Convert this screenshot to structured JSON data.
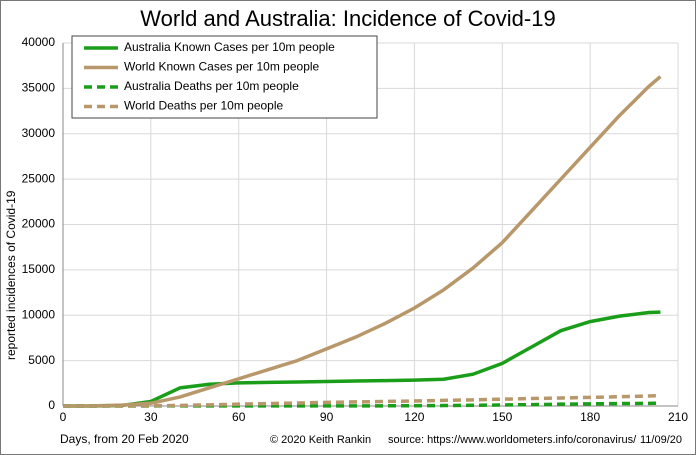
{
  "chart_data": {
    "type": "line",
    "title": "World and Australia: Incidence of Covid-19",
    "x_label": "Days, from 20 Feb 2020",
    "y_label": "reported incidences of Covid-19",
    "annotations": [
      "© 2020  Keith Rankin",
      "source:  https://www.worldometers.info/coronavirus/",
      "11/09/20"
    ],
    "x": [
      0,
      10,
      20,
      30,
      40,
      50,
      60,
      70,
      80,
      90,
      100,
      110,
      120,
      130,
      140,
      150,
      160,
      170,
      180,
      190,
      200,
      204
    ],
    "series": [
      {
        "name": "Australia Known Cases per 10m people",
        "color": "#1a9e1a",
        "style": "solid",
        "values": [
          0,
          0,
          50,
          500,
          2000,
          2400,
          2550,
          2600,
          2650,
          2700,
          2750,
          2800,
          2850,
          2950,
          3500,
          4700,
          6500,
          8300,
          9300,
          9900,
          10300,
          10350
        ]
      },
      {
        "name": "World Known Cases per 10m people",
        "color": "#b8976a",
        "style": "solid",
        "values": [
          0,
          10,
          100,
          300,
          1000,
          2000,
          3000,
          4000,
          5000,
          6300,
          7600,
          9100,
          10800,
          12800,
          15200,
          18000,
          21500,
          25000,
          28500,
          32000,
          35200,
          36300
        ]
      },
      {
        "name": "Australia Deaths per 10m people",
        "color": "#1a9e1a",
        "style": "dashed",
        "values": [
          0,
          0,
          0,
          5,
          10,
          15,
          15,
          15,
          15,
          15,
          15,
          20,
          30,
          50,
          80,
          110,
          150,
          200,
          240,
          270,
          290,
          300
        ]
      },
      {
        "name": "World Deaths per 10m people",
        "color": "#b8976a",
        "style": "dashed",
        "values": [
          0,
          0,
          5,
          20,
          60,
          130,
          200,
          270,
          330,
          400,
          450,
          500,
          550,
          620,
          680,
          750,
          820,
          880,
          950,
          1020,
          1100,
          1150
        ]
      }
    ],
    "xlim": [
      0,
      210
    ],
    "xticks": [
      0,
      30,
      60,
      90,
      120,
      150,
      180,
      210
    ],
    "ylim": [
      0,
      40000
    ],
    "yticks": [
      0,
      5000,
      10000,
      15000,
      20000,
      25000,
      30000,
      35000,
      40000
    ],
    "grid": true,
    "legend": "top-left"
  }
}
